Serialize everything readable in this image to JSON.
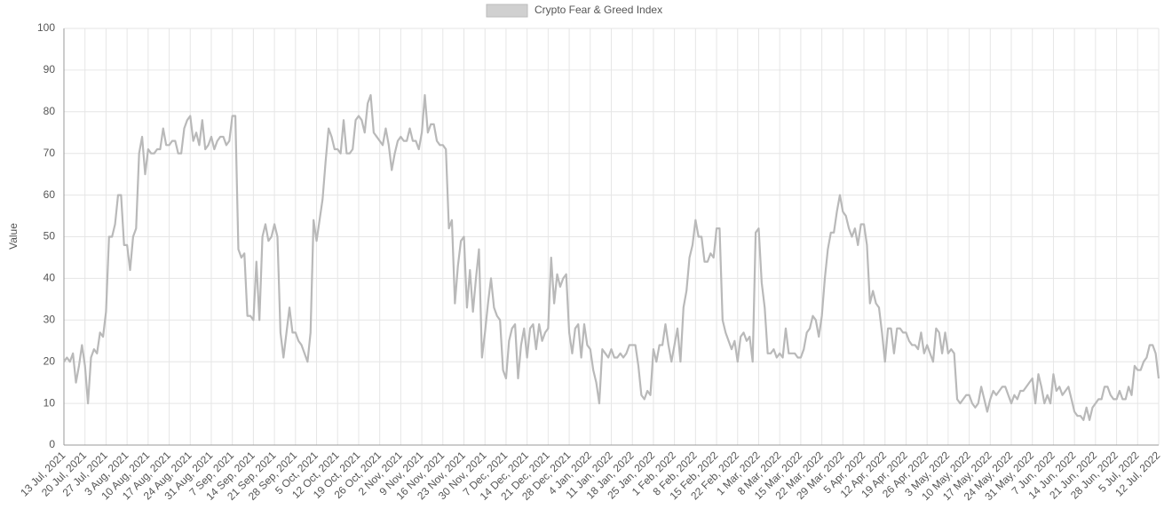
{
  "chart_data": {
    "type": "line",
    "series": [
      {
        "name": "Crypto Fear & Greed Index",
        "color": "#b9b9b9",
        "values": [
          20,
          21,
          20,
          22,
          15,
          19,
          24,
          19,
          10,
          21,
          23,
          22,
          27,
          26,
          32,
          50,
          50,
          53,
          60,
          60,
          48,
          48,
          42,
          50,
          52,
          70,
          74,
          65,
          71,
          70,
          70,
          71,
          71,
          76,
          72,
          72,
          73,
          73,
          70,
          70,
          76,
          78,
          79,
          73,
          75,
          72,
          78,
          71,
          72,
          74,
          71,
          73,
          74,
          74,
          72,
          73,
          79,
          79,
          47,
          45,
          46,
          31,
          31,
          30,
          44,
          30,
          50,
          53,
          49,
          50,
          53,
          50,
          27,
          21,
          27,
          33,
          27,
          27,
          25,
          24,
          22,
          20,
          27,
          54,
          49,
          54,
          59,
          68,
          76,
          74,
          71,
          71,
          70,
          78,
          70,
          70,
          71,
          78,
          79,
          78,
          75,
          82,
          84,
          75,
          74,
          73,
          72,
          76,
          72,
          66,
          70,
          73,
          74,
          73,
          73,
          76,
          73,
          73,
          71,
          75,
          84,
          75,
          77,
          77,
          73,
          72,
          72,
          71,
          52,
          54,
          34,
          43,
          49,
          50,
          33,
          42,
          32,
          40,
          47,
          21,
          27,
          34,
          40,
          33,
          31,
          30,
          18,
          16,
          25,
          28,
          29,
          16,
          24,
          28,
          21,
          28,
          29,
          23,
          29,
          25,
          27,
          28,
          45,
          34,
          41,
          38,
          40,
          41,
          27,
          22,
          28,
          29,
          21,
          29,
          24,
          23,
          18,
          15,
          10,
          23,
          22,
          21,
          23,
          21,
          21,
          22,
          21,
          22,
          24,
          24,
          24,
          19,
          12,
          11,
          13,
          12,
          23,
          20,
          24,
          24,
          29,
          24,
          20,
          24,
          28,
          20,
          33,
          37,
          45,
          48,
          54,
          50,
          50,
          44,
          44,
          46,
          45,
          52,
          52,
          30,
          27,
          25,
          23,
          25,
          20,
          26,
          27,
          25,
          26,
          20,
          51,
          52,
          39,
          33,
          22,
          22,
          23,
          21,
          22,
          21,
          28,
          22,
          22,
          22,
          21,
          21,
          23,
          27,
          28,
          31,
          30,
          26,
          31,
          40,
          47,
          51,
          51,
          56,
          60,
          56,
          55,
          52,
          50,
          52,
          48,
          53,
          53,
          48,
          34,
          37,
          34,
          33,
          27,
          20,
          28,
          28,
          22,
          28,
          28,
          27,
          27,
          25,
          24,
          24,
          23,
          27,
          22,
          24,
          22,
          20,
          28,
          27,
          22,
          27,
          22,
          23,
          22,
          11,
          10,
          11,
          12,
          12,
          10,
          9,
          10,
          14,
          11,
          8,
          11,
          13,
          12,
          13,
          14,
          14,
          12,
          10,
          12,
          11,
          13,
          13,
          14,
          15,
          16,
          10,
          17,
          14,
          10,
          12,
          10,
          17,
          13,
          14,
          12,
          13,
          14,
          11,
          8,
          7,
          7,
          6,
          9,
          6,
          9,
          10,
          11,
          11,
          14,
          14,
          12,
          11,
          11,
          13,
          11,
          11,
          14,
          12,
          19,
          18,
          18,
          20,
          21,
          24,
          24,
          22,
          16
        ]
      }
    ],
    "categories": [
      "13 Jul, 2021",
      null,
      null,
      null,
      null,
      null,
      null,
      "20 Jul, 2021",
      null,
      null,
      null,
      null,
      null,
      null,
      "27 Jul, 2021",
      null,
      null,
      null,
      null,
      null,
      null,
      "3 Aug, 2021",
      null,
      null,
      null,
      null,
      null,
      null,
      "10 Aug, 2021",
      null,
      null,
      null,
      null,
      null,
      null,
      "17 Aug, 2021",
      null,
      null,
      null,
      null,
      null,
      null,
      "24 Aug, 2021",
      null,
      null,
      null,
      null,
      null,
      null,
      "31 Aug, 2021",
      null,
      null,
      null,
      null,
      null,
      null,
      "7 Sep, 2021",
      null,
      null,
      null,
      null,
      null,
      null,
      "14 Sep, 2021",
      null,
      null,
      null,
      null,
      null,
      null,
      "21 Sep, 2021",
      null,
      null,
      null,
      null,
      null,
      null,
      "28 Sep, 2021",
      null,
      null,
      null,
      null,
      null,
      null,
      "5 Oct, 2021",
      null,
      null,
      null,
      null,
      null,
      null,
      "12 Oct, 2021",
      null,
      null,
      null,
      null,
      null,
      null,
      "19 Oct, 2021",
      null,
      null,
      null,
      null,
      null,
      null,
      "26 Oct, 2021",
      null,
      null,
      null,
      null,
      null,
      null,
      "2 Nov, 2021",
      null,
      null,
      null,
      null,
      null,
      null,
      "9 Nov, 2021",
      null,
      null,
      null,
      null,
      null,
      null,
      "16 Nov, 2021",
      null,
      null,
      null,
      null,
      null,
      null,
      "23 Nov, 2021",
      null,
      null,
      null,
      null,
      null,
      null,
      "30 Nov, 2021",
      null,
      null,
      null,
      null,
      null,
      null,
      "7 Dec, 2021",
      null,
      null,
      null,
      null,
      null,
      null,
      "14 Dec, 2021",
      null,
      null,
      null,
      null,
      null,
      null,
      "21 Dec, 2021",
      null,
      null,
      null,
      null,
      null,
      null,
      "28 Dec, 2021",
      null,
      null,
      null,
      null,
      null,
      null,
      "4 Jan, 2022",
      null,
      null,
      null,
      null,
      null,
      null,
      "11 Jan, 2022",
      null,
      null,
      null,
      null,
      null,
      null,
      "18 Jan, 2022",
      null,
      null,
      null,
      null,
      null,
      null,
      "25 Jan, 2022",
      null,
      null,
      null,
      null,
      null,
      null,
      "1 Feb, 2022",
      null,
      null,
      null,
      null,
      null,
      null,
      "8 Feb, 2022",
      null,
      null,
      null,
      null,
      null,
      null,
      "15 Feb, 2022",
      null,
      null,
      null,
      null,
      null,
      null,
      "22 Feb, 2022",
      null,
      null,
      null,
      null,
      null,
      null,
      "1 Mar, 2022",
      null,
      null,
      null,
      null,
      null,
      null,
      "8 Mar, 2022",
      null,
      null,
      null,
      null,
      null,
      null,
      "15 Mar, 2022",
      null,
      null,
      null,
      null,
      null,
      null,
      "22 Mar, 2022",
      null,
      null,
      null,
      null,
      null,
      null,
      "29 Mar, 2022",
      null,
      null,
      null,
      null,
      null,
      null,
      "5 Apr, 2022",
      null,
      null,
      null,
      null,
      null,
      null,
      "12 Apr, 2022",
      null,
      null,
      null,
      null,
      null,
      null,
      "19 Apr, 2022",
      null,
      null,
      null,
      null,
      null,
      null,
      "26 Apr, 2022",
      null,
      null,
      null,
      null,
      null,
      null,
      "3 May, 2022",
      null,
      null,
      null,
      null,
      null,
      null,
      "10 May, 2022",
      null,
      null,
      null,
      null,
      null,
      null,
      "17 May, 2022",
      null,
      null,
      null,
      null,
      null,
      null,
      "24 May, 2022",
      null,
      null,
      null,
      null,
      null,
      null,
      "31 May, 2022",
      null,
      null,
      null,
      null,
      null,
      null,
      "7 Jun, 2022",
      null,
      null,
      null,
      null,
      null,
      null,
      "14 Jun, 2022",
      null,
      null,
      null,
      null,
      null,
      null,
      "21 Jun, 2022",
      null,
      null,
      null,
      null,
      null,
      null,
      "28 Jun, 2022",
      null,
      null,
      null,
      null,
      null,
      null,
      "5 Jul, 2022",
      null,
      null,
      null,
      null,
      null,
      null,
      "12 Jul, 2022"
    ],
    "y_label": "Value",
    "ylim": [
      0,
      100
    ],
    "yticks": [
      0,
      10,
      20,
      30,
      40,
      50,
      60,
      70,
      80,
      90,
      100
    ],
    "grid": true,
    "legend": "top"
  }
}
